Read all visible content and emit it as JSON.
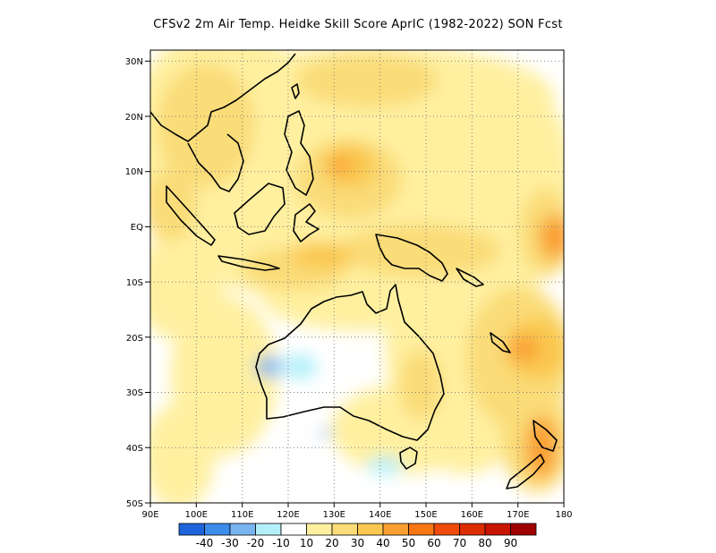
{
  "title": "CFSv2  2m Air Temp. Heidke Skill Score AprIC (1982-2022) SON Fcst",
  "map": {
    "lon_range": [
      90,
      180
    ],
    "lat_range": [
      -50,
      32
    ],
    "lon_ticks": [
      "90E",
      "100E",
      "110E",
      "120E",
      "130E",
      "140E",
      "150E",
      "160E",
      "170E",
      "180"
    ],
    "lat_ticks": [
      "30N",
      "20N",
      "10N",
      "EQ",
      "10S",
      "20S",
      "30S",
      "40S",
      "50S"
    ],
    "grid": "dotted"
  },
  "colorbar": {
    "colors": [
      "#1e64dc",
      "#3c8ceb",
      "#78b4f0",
      "#b4f0fa",
      "#ffffff",
      "#fff0a0",
      "#fadc78",
      "#fac850",
      "#faa032",
      "#fa7814",
      "#f04b0a",
      "#dc2d00",
      "#c81400",
      "#a00000"
    ],
    "labels": [
      "-40",
      "-30",
      "-20",
      "-10",
      "10",
      "20",
      "30",
      "40",
      "50",
      "60",
      "70",
      "80",
      "90"
    ]
  }
}
